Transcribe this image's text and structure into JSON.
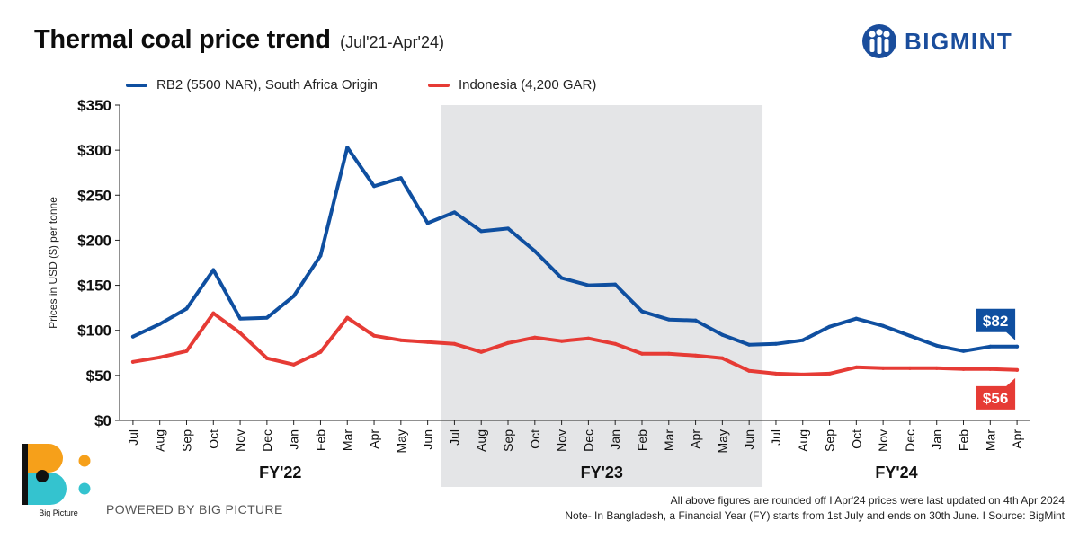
{
  "header": {
    "title": "Thermal coal price trend",
    "subtitle": "(Jul'21-Apr'24)",
    "brand": "BIGMINT"
  },
  "colors": {
    "rb2": "#0f4fa0",
    "indonesia": "#e63b35",
    "fy23_band": "#e4e5e7",
    "axis": "#222222"
  },
  "chart_data": {
    "type": "line",
    "title": "Thermal coal price trend",
    "subtitle": "(Jul'21-Apr'24)",
    "ylabel": "Prices in USD ($) per tonne",
    "xlabel": "",
    "ylim": [
      0,
      350
    ],
    "yticks": [
      0,
      50,
      100,
      150,
      200,
      250,
      300,
      350
    ],
    "ytick_labels": [
      "$0",
      "$50",
      "$100",
      "$150",
      "$200",
      "$250",
      "$300",
      "$350"
    ],
    "grid": false,
    "legend_position": "top-left",
    "categories": [
      "Jul",
      "Aug",
      "Sep",
      "Oct",
      "Nov",
      "Dec",
      "Jan",
      "Feb",
      "Mar",
      "Apr",
      "May",
      "Jun",
      "Jul",
      "Aug",
      "Sep",
      "Oct",
      "Nov",
      "Dec",
      "Jan",
      "Feb",
      "Mar",
      "Apr",
      "May",
      "Jun",
      "Jul",
      "Aug",
      "Sep",
      "Oct",
      "Nov",
      "Dec",
      "Jan",
      "Feb",
      "Mar",
      "Apr"
    ],
    "fiscal_years": [
      {
        "label": "FY'22",
        "start": 0,
        "end": 11,
        "shaded": false
      },
      {
        "label": "FY'23",
        "start": 12,
        "end": 23,
        "shaded": true
      },
      {
        "label": "FY'24",
        "start": 24,
        "end": 33,
        "shaded": false
      }
    ],
    "series": [
      {
        "name": "RB2 (5500 NAR), South Africa Origin",
        "color": "#0f4fa0",
        "values": [
          93,
          107,
          124,
          167,
          113,
          114,
          138,
          183,
          303,
          260,
          269,
          219,
          231,
          210,
          213,
          188,
          158,
          150,
          151,
          121,
          112,
          111,
          95,
          84,
          85,
          89,
          104,
          113,
          105,
          94,
          83,
          77,
          82,
          82
        ],
        "end_label": "$82"
      },
      {
        "name": "Indonesia (4,200 GAR)",
        "color": "#e63b35",
        "values": [
          65,
          70,
          77,
          119,
          97,
          69,
          62,
          76,
          114,
          94,
          89,
          87,
          85,
          76,
          86,
          92,
          88,
          91,
          85,
          74,
          74,
          72,
          69,
          55,
          52,
          51,
          52,
          59,
          58,
          58,
          58,
          57,
          57,
          56
        ],
        "end_label": "$56"
      }
    ]
  },
  "footer": {
    "logo_caption": "Big Picture",
    "powered": "POWERED BY BIG PICTURE",
    "note1": "All above figures are rounded off  I  Apr'24 prices were last updated on 4th Apr 2024",
    "note2": "Note- In Bangladesh, a Financial Year (FY) starts from 1st July and ends on 30th June.  I  Source: BigMint"
  }
}
